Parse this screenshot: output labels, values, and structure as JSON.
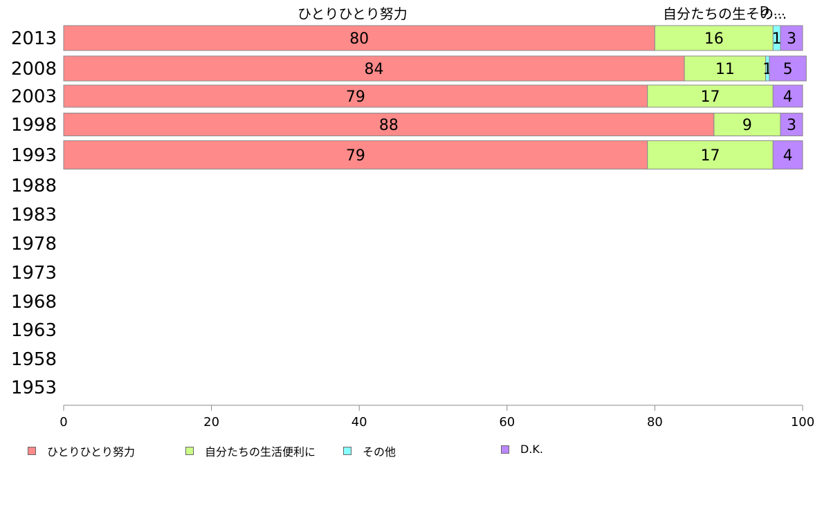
{
  "chart_data": {
    "type": "bar",
    "orientation": "horizontal",
    "stacked": true,
    "categories": [
      "2013",
      "2008",
      "2003",
      "1998",
      "1993",
      "1988",
      "1983",
      "1978",
      "1973",
      "1968",
      "1963",
      "1958",
      "1953"
    ],
    "series": [
      {
        "name": "ひとりひとり努力",
        "color": "#ff8a8a",
        "values": [
          80,
          84,
          79,
          88,
          79,
          null,
          null,
          null,
          null,
          null,
          null,
          null,
          null
        ],
        "labels": [
          "80",
          "84",
          "79",
          "88",
          "79",
          "",
          "",
          "",
          "",
          "",
          "",
          "",
          ""
        ]
      },
      {
        "name": "自分たちの生活便利に",
        "color": "#ccff88",
        "values": [
          16,
          11,
          17,
          9,
          17,
          null,
          null,
          null,
          null,
          null,
          null,
          null,
          null
        ],
        "labels": [
          "16",
          "11",
          "17",
          "9",
          "17",
          "",
          "",
          "",
          "",
          "",
          "",
          "",
          ""
        ]
      },
      {
        "name": "その他",
        "color": "#88ffff",
        "values": [
          1,
          0.5,
          0,
          0,
          0,
          null,
          null,
          null,
          null,
          null,
          null,
          null,
          null
        ],
        "labels": [
          "1",
          "1",
          "",
          "",
          "",
          "",
          "",
          "",
          "",
          "",
          "",
          "",
          ""
        ]
      },
      {
        "name": "D.K.",
        "color": "#bb88ff",
        "values": [
          3,
          5,
          4,
          3,
          4,
          null,
          null,
          null,
          null,
          null,
          null,
          null,
          null
        ],
        "labels": [
          "3",
          "5",
          "4",
          "3",
          "4",
          "",
          "",
          "",
          "",
          "",
          "",
          "",
          ""
        ]
      }
    ],
    "xlim": [
      0,
      100
    ],
    "xticks": [
      "0",
      "20",
      "40",
      "60",
      "80",
      "100"
    ],
    "top_headers": [
      "ひとりひとり努力",
      "自分たちの生その...",
      "D...."
    ],
    "grid": false,
    "legend_position": "bottom"
  }
}
